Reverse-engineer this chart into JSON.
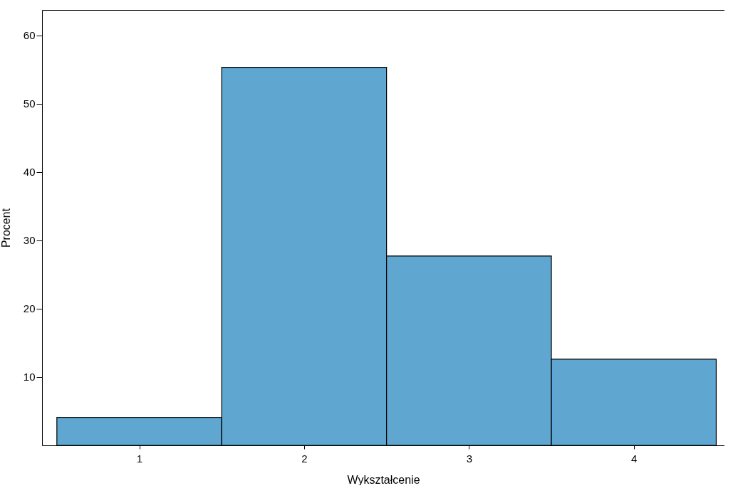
{
  "chart_data": {
    "type": "histogram",
    "xlabel": "Wykształcenie",
    "ylabel": "Procent",
    "bins": [
      0.5,
      1.5,
      2.5,
      3.5,
      4.5
    ],
    "values": [
      4.1,
      55.3,
      27.7,
      12.6
    ],
    "color": "#5fa6d0",
    "xlim": [
      0.41,
      4.55
    ],
    "xticks": [
      1,
      2,
      3,
      4
    ],
    "ylim": [
      0,
      63.7
    ],
    "yticks": [
      10,
      20,
      30,
      40,
      50,
      60
    ],
    "grid": false,
    "legend": false
  }
}
